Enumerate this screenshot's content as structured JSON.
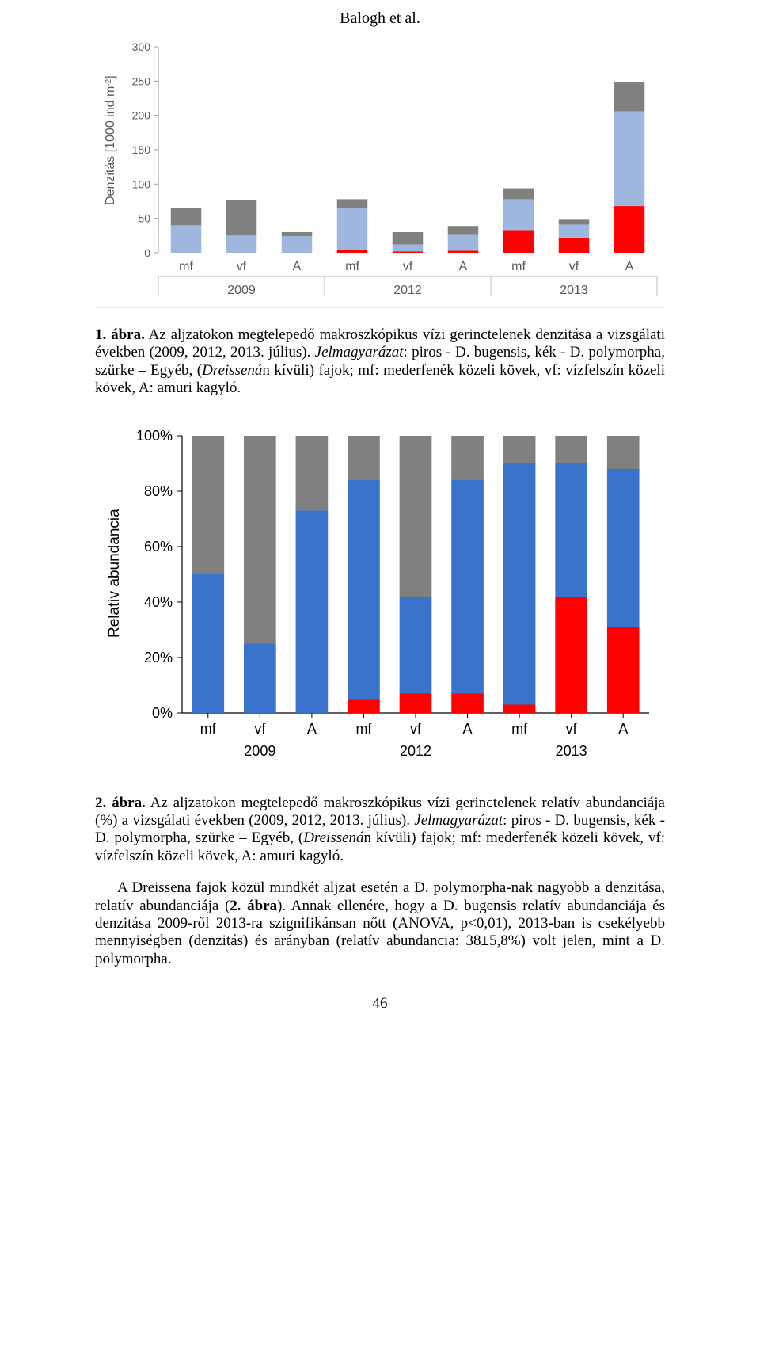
{
  "header": "Balogh et al.",
  "pagenum": "46",
  "chart1": {
    "type": "stacked-bar",
    "ylabel_html": "Denzitás [1000 ind m<tspan baseline-shift='4' font-size='10'>-2</tspan>]",
    "yticks": [
      0,
      50,
      100,
      150,
      200,
      250,
      300
    ],
    "categories": [
      "mf",
      "vf",
      "A",
      "mf",
      "vf",
      "A",
      "mf",
      "vf",
      "A"
    ],
    "group_labels": [
      "2009",
      "2012",
      "2013"
    ],
    "colors": {
      "red": "#ff0000",
      "blue": "#9db7df",
      "gray": "#808080"
    },
    "axis_color": "#9e9e9e",
    "tick_color": "#595959",
    "data": [
      {
        "red": 0,
        "blue": 40,
        "gray": 25
      },
      {
        "red": 0,
        "blue": 25,
        "gray": 52
      },
      {
        "red": 0,
        "blue": 24,
        "gray": 6
      },
      {
        "red": 4,
        "blue": 61,
        "gray": 13
      },
      {
        "red": 2,
        "blue": 10,
        "gray": 18
      },
      {
        "red": 3,
        "blue": 24,
        "gray": 12
      },
      {
        "red": 33,
        "blue": 45,
        "gray": 16
      },
      {
        "red": 22,
        "blue": 19,
        "gray": 7
      },
      {
        "red": 68,
        "blue": 138,
        "gray": 42
      }
    ]
  },
  "caption1": {
    "bold": "1. ábra.",
    "text_before_italic": " Az aljzatokon megtelepedő makroszkópikus vízi gerinctelenek denzitása a vizsgálati években (2009, 2012, 2013. július). ",
    "italic": "Jelmagyarázat",
    "text_after": ": piros - D. bugensis, kék - D. polymorpha, szürke – Egyéb, (",
    "italic2": "Dreissená",
    "tail": "n kívüli) fajok; mf: mederfenék közeli kövek, vf: vízfelszín közeli kövek, A: amuri kagyló."
  },
  "chart2": {
    "type": "stacked-bar-100",
    "ylabel": "Relatív abundancia",
    "yticks": [
      "0%",
      "20%",
      "40%",
      "60%",
      "80%",
      "100%"
    ],
    "categories": [
      "mf",
      "vf",
      "A",
      "mf",
      "vf",
      "A",
      "mf",
      "vf",
      "A"
    ],
    "group_labels": [
      "2009",
      "2012",
      "2013"
    ],
    "colors": {
      "red": "#ff0000",
      "blue": "#3973cc",
      "gray": "#808080"
    },
    "data": [
      {
        "red": 0,
        "blue": 50,
        "gray": 50
      },
      {
        "red": 0,
        "blue": 25,
        "gray": 75
      },
      {
        "red": 0,
        "blue": 73,
        "gray": 27
      },
      {
        "red": 5,
        "blue": 79,
        "gray": 16
      },
      {
        "red": 7,
        "blue": 35,
        "gray": 58
      },
      {
        "red": 7,
        "blue": 77,
        "gray": 16
      },
      {
        "red": 3,
        "blue": 87,
        "gray": 10
      },
      {
        "red": 42,
        "blue": 48,
        "gray": 10
      },
      {
        "red": 31,
        "blue": 57,
        "gray": 12
      }
    ]
  },
  "caption2": {
    "bold": "2. ábra.",
    "text_before_italic": " Az aljzatokon megtelepedő makroszkópikus vízi gerinctelenek relatív abundanciája (%) a vizsgálati években (2009, 2012, 2013. július). ",
    "italic": "Jelmagyarázat",
    "text_after": ": piros - D. bugensis, kék - D. polymorpha, szürke – Egyéb, (",
    "italic2": "Dreissená",
    "tail": "n kívüli) fajok; mf: mederfenék közeli kövek, vf: vízfelszín közeli kövek, A: amuri kagyló."
  },
  "body": {
    "p1a": "A Dreissena fajok közül mindkét aljzat esetén a D. polymorpha-nak nagyobb a denzitása, relatív abundanciája (",
    "p1bold": "2. ábra",
    "p1b": "). Annak ellenére, hogy a D. bugensis relatív abundanciája és denzitása 2009-ről 2013-ra szignifikánsan nőtt (ANOVA, p<0,01), 2013-ban is csekélyebb mennyiségben (denzitás) és arányban (relatív abundancia: 38±5,8%) volt jelen, mint a D. polymorpha."
  }
}
